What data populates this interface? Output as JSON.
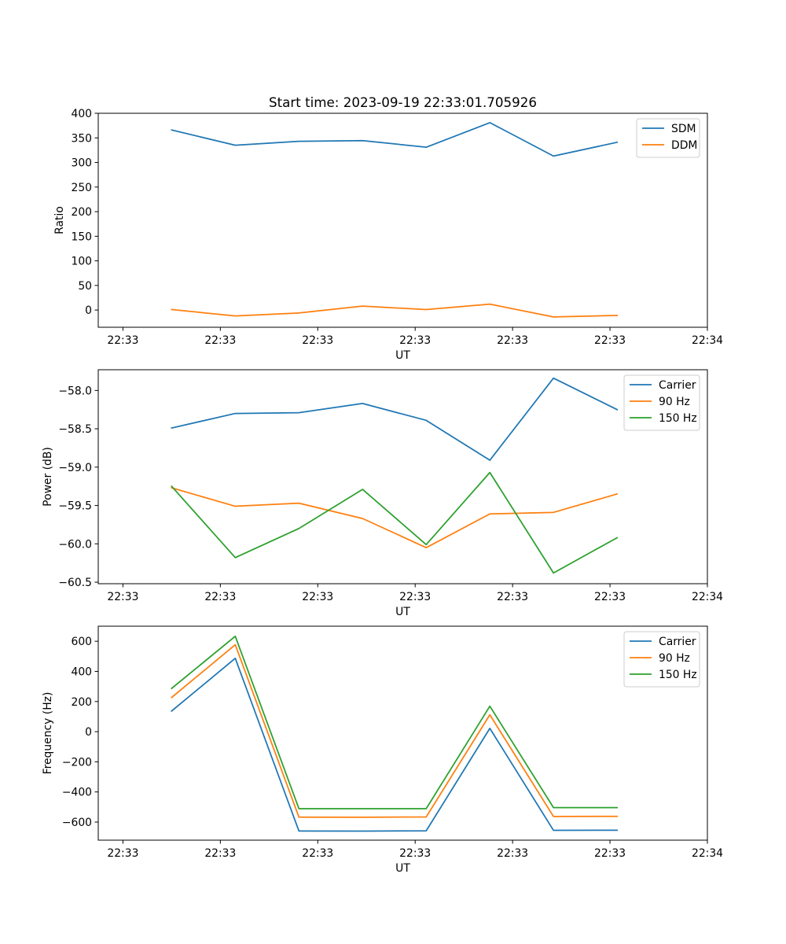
{
  "figure_title": "Start time: 2023-09-19 22:33:01.705926",
  "colors": {
    "c0": "#1f77b4",
    "c1": "#ff7f0e",
    "c2": "#2ca02c"
  },
  "chart_data": [
    {
      "type": "line",
      "title": "Start time: 2023-09-19 22:33:01.705926",
      "xlabel": "UT",
      "ylabel": "Ratio",
      "xlim": [
        -0.38,
        9.0
      ],
      "ylim": [
        -35,
        400
      ],
      "xticks": [
        0,
        1.5,
        3,
        4.5,
        6,
        7.5,
        9
      ],
      "xticklabels": [
        "22:33",
        "22:33",
        "22:33",
        "22:33",
        "22:33",
        "22:33",
        "22:34"
      ],
      "yticks": [
        0,
        50,
        100,
        150,
        200,
        250,
        300,
        350,
        400
      ],
      "yticklabels": [
        "0",
        "50",
        "100",
        "150",
        "200",
        "250",
        "300",
        "350",
        "400"
      ],
      "x": [
        0.75,
        1.73,
        2.71,
        3.69,
        4.67,
        5.65,
        6.63,
        7.61
      ],
      "legend_location": "upper right",
      "series": [
        {
          "name": "SDM",
          "color": "#1f77b4",
          "values": [
            366,
            335,
            343,
            344.5,
            331,
            381,
            313,
            341
          ]
        },
        {
          "name": "DDM",
          "color": "#ff7f0e",
          "values": [
            1,
            -12,
            -6,
            8,
            1,
            12,
            -14,
            -11
          ]
        }
      ]
    },
    {
      "type": "line",
      "title": "",
      "xlabel": "UT",
      "ylabel": "Power (dB)",
      "xlim": [
        -0.38,
        9.0
      ],
      "ylim": [
        -60.52,
        -57.73
      ],
      "xticks": [
        0,
        1.5,
        3,
        4.5,
        6,
        7.5,
        9
      ],
      "xticklabels": [
        "22:33",
        "22:33",
        "22:33",
        "22:33",
        "22:33",
        "22:33",
        "22:34"
      ],
      "yticks": [
        -60.5,
        -60.0,
        -59.5,
        -59.0,
        -58.5,
        -58.0
      ],
      "yticklabels": [
        "−60.5",
        "−60.0",
        "−59.5",
        "−59.0",
        "−58.5",
        "−58.0"
      ],
      "x": [
        0.75,
        1.73,
        2.71,
        3.69,
        4.67,
        5.65,
        6.63,
        7.61
      ],
      "legend_location": "upper right",
      "series": [
        {
          "name": "Carrier",
          "color": "#1f77b4",
          "values": [
            -58.49,
            -58.3,
            -58.29,
            -58.17,
            -58.39,
            -58.91,
            -57.84,
            -58.25
          ]
        },
        {
          "name": "90 Hz",
          "color": "#ff7f0e",
          "values": [
            -59.27,
            -59.51,
            -59.47,
            -59.67,
            -60.05,
            -59.61,
            -59.59,
            -59.35
          ]
        },
        {
          "name": "150 Hz",
          "color": "#2ca02c",
          "values": [
            -59.25,
            -60.18,
            -59.8,
            -59.29,
            -60.01,
            -59.07,
            -60.38,
            -59.92
          ]
        }
      ]
    },
    {
      "type": "line",
      "title": "",
      "xlabel": "UT",
      "ylabel": "Frequency (Hz)",
      "xlim": [
        -0.38,
        9.0
      ],
      "ylim": [
        -720,
        700
      ],
      "xticks": [
        0,
        1.5,
        3,
        4.5,
        6,
        7.5,
        9
      ],
      "xticklabels": [
        "22:33",
        "22:33",
        "22:33",
        "22:33",
        "22:33",
        "22:33",
        "22:34"
      ],
      "yticks": [
        -600,
        -400,
        -200,
        0,
        200,
        400,
        600
      ],
      "yticklabels": [
        "−600",
        "−400",
        "−200",
        "0",
        "200",
        "400",
        "600"
      ],
      "x": [
        0.75,
        1.73,
        2.71,
        3.69,
        4.67,
        5.65,
        6.63,
        7.61
      ],
      "legend_location": "upper right",
      "series": [
        {
          "name": "Carrier",
          "color": "#1f77b4",
          "values": [
            137,
            487,
            -659,
            -660,
            -658,
            22,
            -655,
            -654
          ]
        },
        {
          "name": "90 Hz",
          "color": "#ff7f0e",
          "values": [
            227,
            577,
            -567,
            -568,
            -566,
            112,
            -563,
            -562
          ]
        },
        {
          "name": "150 Hz",
          "color": "#2ca02c",
          "values": [
            287,
            633,
            -511,
            -511,
            -511,
            169,
            -504,
            -504
          ]
        }
      ]
    }
  ]
}
